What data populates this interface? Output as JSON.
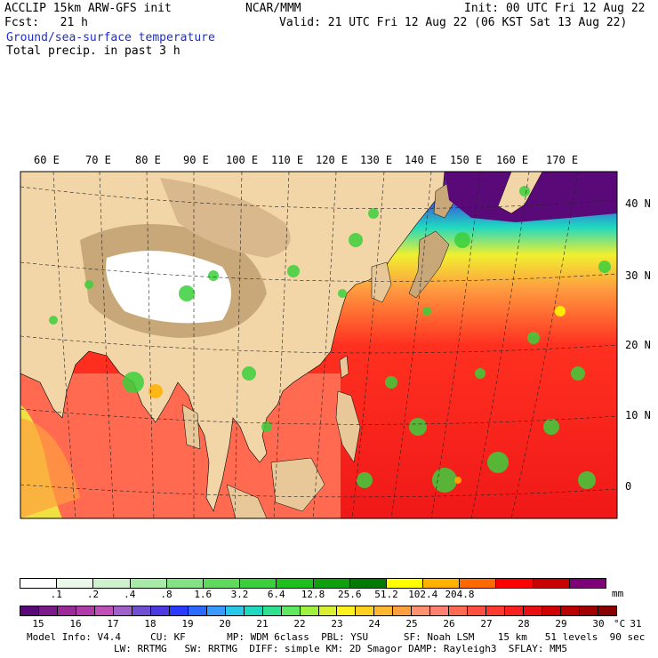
{
  "header": {
    "line1_left": "ACCLIP 15km ARW-GFS init",
    "line1_center": "NCAR/MMM",
    "line1_right": "Init: 00 UTC Fri 12 Aug 22",
    "line2_left": "Fcst:   21 h",
    "line2_right": "Valid: 21 UTC Fri 12 Aug 22 (06 KST Sat 13 Aug 22)",
    "line3": "Ground/sea-surface temperature",
    "line4": "Total precip. in past 3 h"
  },
  "map": {
    "lon_labels": [
      "60 E",
      "70 E",
      "80 E",
      "90 E",
      "100 E",
      "110 E",
      "120 E",
      "130 E",
      "140 E",
      "150 E",
      "160 E",
      "170 E"
    ],
    "lat_labels": [
      "40 N",
      "30 N",
      "20 N",
      "10 N",
      "0"
    ]
  },
  "precip_legend": {
    "unit": "mm",
    "ticks": [
      ".1",
      ".2",
      ".4",
      ".8",
      "1.6",
      "3.2",
      "6.4",
      "12.8",
      "25.6",
      "51.2",
      "102.4",
      "204.8"
    ],
    "colors": [
      "#ffffff",
      "#eaf8ea",
      "#cdf2cd",
      "#a8eaa8",
      "#84e284",
      "#5fda5f",
      "#3ccf3c",
      "#1fbf1f",
      "#0f9f0f",
      "#007a00",
      "#ffff00",
      "#ffb300",
      "#ff6a00",
      "#ff0000",
      "#c80000",
      "#7d0078"
    ]
  },
  "temp_legend": {
    "unit": "°C",
    "ticks": [
      "15",
      "16",
      "17",
      "18",
      "19",
      "20",
      "21",
      "22",
      "23",
      "24",
      "25",
      "26",
      "27",
      "28",
      "29",
      "30",
      "31"
    ],
    "colors": [
      "#5a0a78",
      "#7a1a8a",
      "#9a2a9a",
      "#b03aa8",
      "#c050b8",
      "#a060c8",
      "#7050d0",
      "#4a3ae0",
      "#2a3aff",
      "#2a6aff",
      "#3a9aff",
      "#2ac8e8",
      "#20d8c0",
      "#30e090",
      "#60e860",
      "#a0f040",
      "#d8f030",
      "#fff020",
      "#ffd020",
      "#ffb830",
      "#ffa040",
      "#ff9070",
      "#ff8070",
      "#ff6a50",
      "#ff5040",
      "#ff3a30",
      "#f82020",
      "#e81010",
      "#d00000",
      "#b80000",
      "#a00000",
      "#880000"
    ]
  },
  "footer": {
    "line1": "Model Info: V4.4     CU: KF       MP: WDM 6class  PBL: YSU      SF: Noah LSM    15 km   51 levels  90 sec",
    "line2": "LW: RRTMG   SW: RRTMG  DIFF: simple KM: 2D Smagor DAMP: Rayleigh3  SFLAY: MM5"
  }
}
